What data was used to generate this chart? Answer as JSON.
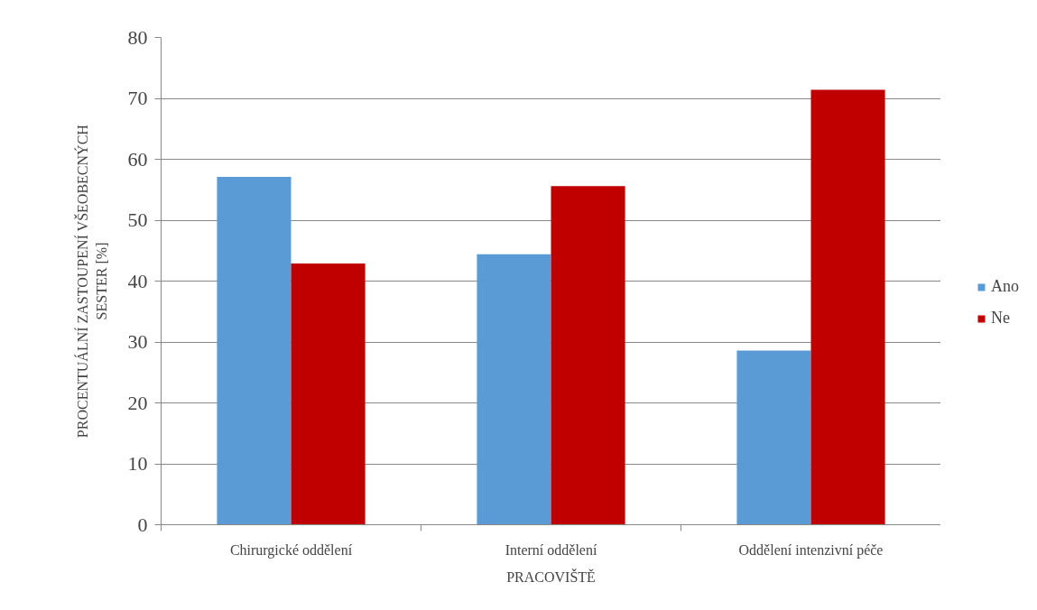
{
  "chart_data": {
    "type": "bar",
    "xlabel": "PRACOVIŠTĚ",
    "ylabel": "PROCENTUÁLNÍ ZASTOUPENÍ VŠEOBECNÝCH SESTER [%]",
    "categories": [
      "Chirurgické oddělení",
      "Interní oddělení",
      "Oddělení intenzivní péče"
    ],
    "series": [
      {
        "name": "Ano",
        "color": "#5b9bd5",
        "values": [
          57.1,
          44.4,
          28.6
        ]
      },
      {
        "name": "Ne",
        "color": "#c00000",
        "values": [
          42.9,
          55.6,
          71.4
        ]
      }
    ],
    "ylim": [
      0,
      80
    ],
    "yticks": [
      0,
      10,
      20,
      30,
      40,
      50,
      60,
      70,
      80
    ],
    "grid": "y",
    "legend": "right"
  }
}
